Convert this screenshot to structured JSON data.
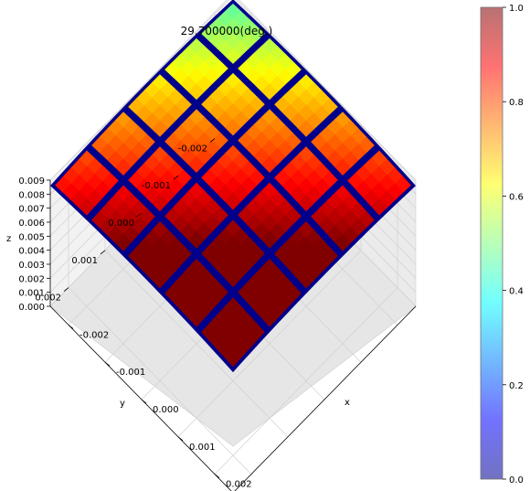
{
  "chart_data": {
    "type": "surface3d",
    "title": "29.700000(deg.)",
    "xlabel": "x",
    "ylabel": "y",
    "zlabel": "z",
    "x_ticks": [
      "-0.002",
      "-0.001",
      "0.000",
      "0.001",
      "0.002"
    ],
    "y_ticks": [
      "-0.002",
      "-0.001",
      "0.000",
      "0.001",
      "0.002"
    ],
    "z_ticks": [
      "0.000",
      "0.001",
      "0.002",
      "0.003",
      "0.004",
      "0.005",
      "0.006",
      "0.007",
      "0.008",
      "0.009"
    ],
    "xlim": [
      -0.0025,
      0.0025
    ],
    "ylim": [
      -0.0025,
      0.0025
    ],
    "zlim": [
      0.0,
      0.009
    ],
    "colorbar": {
      "colormap": "jet",
      "range": [
        0.0,
        1.0
      ],
      "ticks": [
        "0.0",
        "0.2",
        "0.4",
        "0.6",
        "0.8",
        "1.0"
      ]
    },
    "grid": true,
    "view": "azimuth 45, elevation 45",
    "cells": 5,
    "gap_color": "#00008b",
    "corner_z": {
      "x-_y-": 0.0086,
      "x-_y+": 0.0086,
      "x+_y-": 0.0086,
      "x+_y+": 0.0086
    },
    "center_z": 0.0092
  }
}
